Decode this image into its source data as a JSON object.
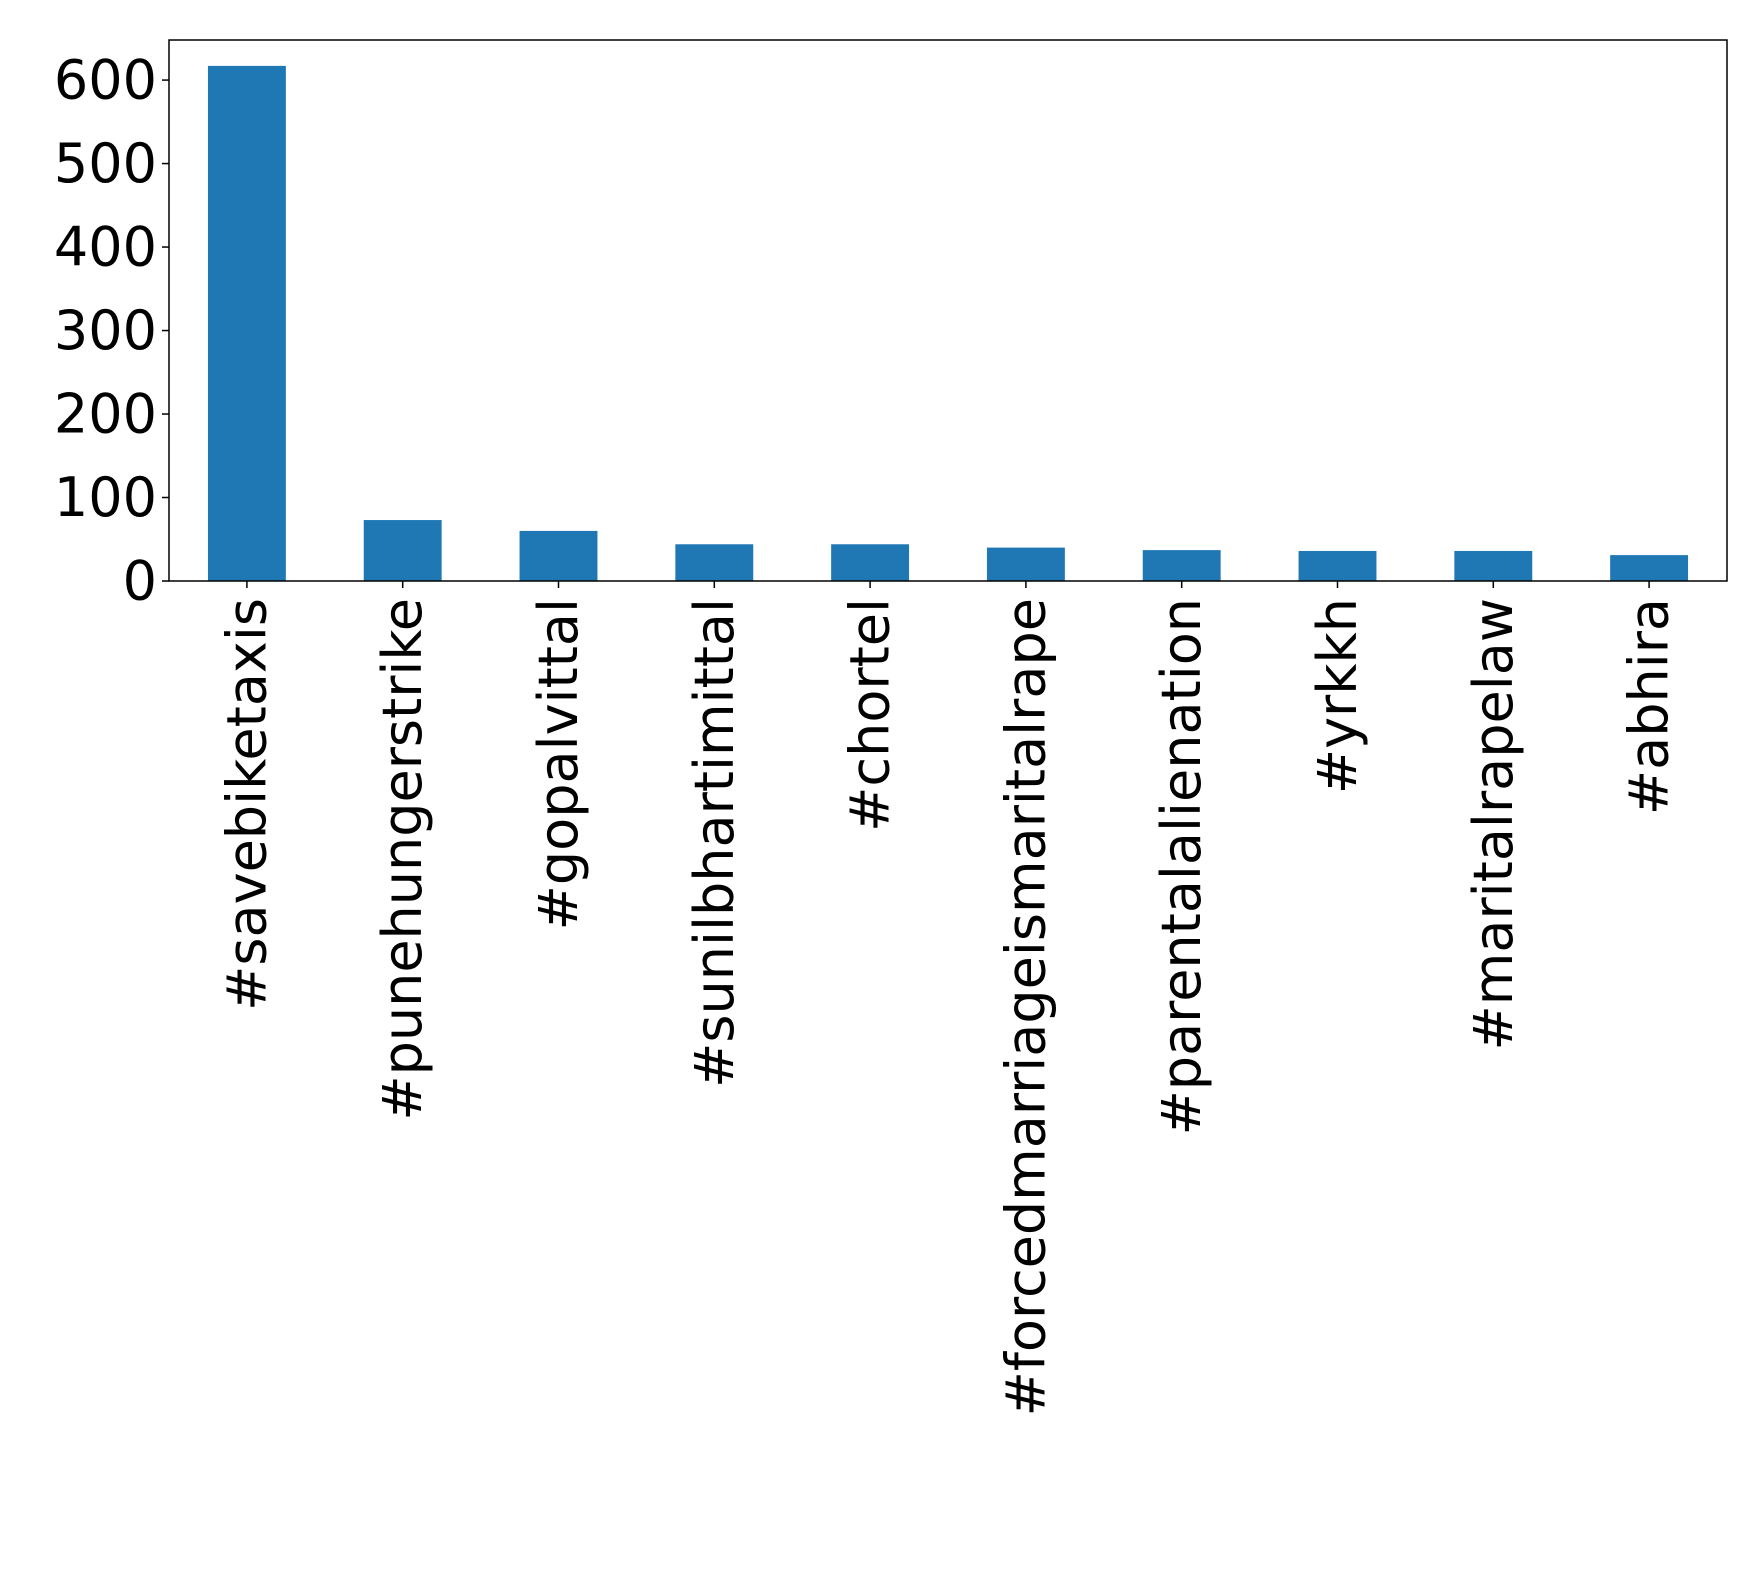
{
  "chart_data": {
    "type": "bar",
    "title": "",
    "xlabel": "",
    "ylabel": "",
    "categories": [
      "#savebiketaxis",
      "#punehungerstrike",
      "#gopalvittal",
      "#sunilbhartimittal",
      "#chortel",
      "#forcedmarriageismaritalrape",
      "#parentalalienation",
      "#yrkkh",
      "#maritalrapelaw",
      "#abhira"
    ],
    "values": [
      617,
      73,
      60,
      44,
      44,
      40,
      37,
      36,
      36,
      31
    ],
    "ylim": [
      0,
      648
    ],
    "yticks": [
      0,
      100,
      200,
      300,
      400,
      500,
      600
    ],
    "ytick_labels": [
      "0",
      "100",
      "200",
      "300",
      "400",
      "500",
      "600"
    ],
    "grid": false,
    "legend": "none",
    "bar_color": "#1f77b4"
  }
}
